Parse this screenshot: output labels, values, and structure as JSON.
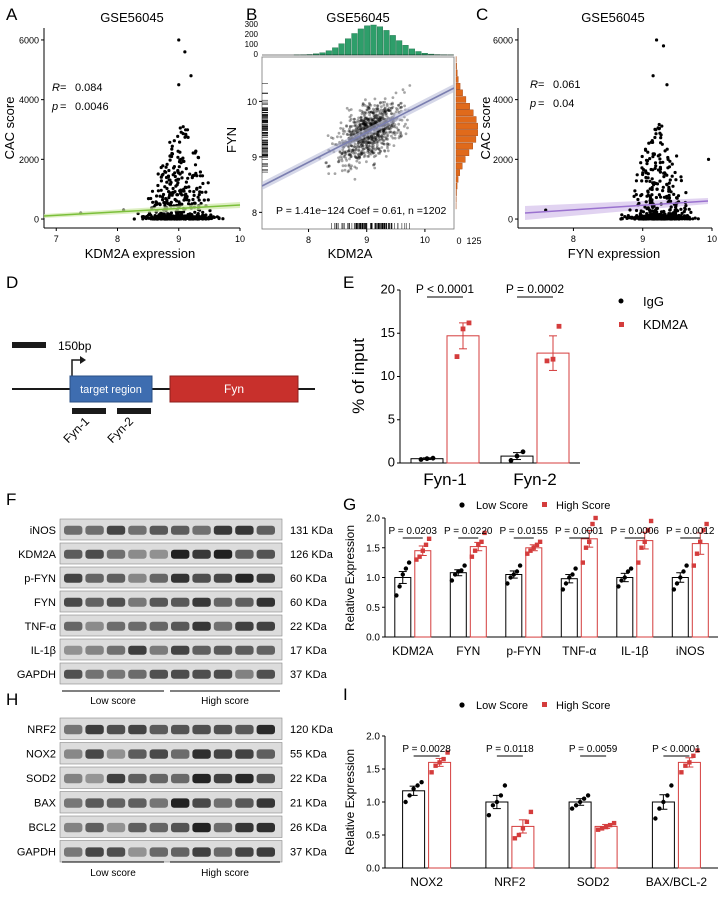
{
  "panels": {
    "A": {
      "letter": "A",
      "title": "GSE56045",
      "r_label": "R",
      "r_value": "0.084",
      "p_label": "p",
      "p_value": "0.0046",
      "xlabel": "KDM2A expression",
      "ylabel": "CAC score",
      "x_ticks": [
        "7",
        "8",
        "9",
        "10"
      ],
      "y_ticks": [
        "0",
        "2000",
        "4000",
        "6000"
      ]
    },
    "B": {
      "letter": "B",
      "title": "GSE56045",
      "xlabel": "KDM2A",
      "ylabel": "FYN",
      "x_ticks": [
        "8",
        "9",
        "10"
      ],
      "y_ticks": [
        "8",
        "9",
        "10"
      ],
      "top_hist_ticks": [
        "0",
        "100",
        "200",
        "300"
      ],
      "right_hist_ticks": [
        "0",
        "125"
      ],
      "stats": "P = 1.41e−124 Coef = 0.61, n =1202",
      "colors": {
        "top_hist": "#2e9e6a",
        "right_hist": "#e06a1b",
        "line": "#7b7fb0"
      }
    },
    "C": {
      "letter": "C",
      "title": "GSE56045",
      "r_label": "R",
      "r_value": "0.061",
      "p_label": "p",
      "p_value": "0.04",
      "xlabel": "FYN expression",
      "ylabel": "CAC score",
      "x_ticks": [
        "8",
        "9",
        "10"
      ],
      "y_ticks": [
        "0",
        "2000",
        "4000",
        "6000"
      ]
    },
    "D": {
      "letter": "D",
      "scale_label": "150bp",
      "target_label": "target region",
      "gene_label": "Fyn",
      "primer1": "Fyn-1",
      "primer2": "Fyn-2",
      "colors": {
        "target": "#3e6db0",
        "gene": "#c8302c"
      }
    },
    "E": {
      "letter": "E",
      "ylabel": "% of input",
      "y_ticks": [
        "0",
        "5",
        "10",
        "15",
        "20"
      ],
      "categories": [
        "Fyn-1",
        "Fyn-2"
      ],
      "p_values": [
        "P < 0.0001",
        "P = 0.0002"
      ],
      "legend": [
        "IgG",
        "KDM2A"
      ]
    },
    "F": {
      "letter": "F",
      "bands": [
        "iNOS",
        "KDM2A",
        "p-FYN",
        "FYN",
        "TNF-α",
        "IL-1β",
        "GAPDH"
      ],
      "sizes": [
        "131 KDa",
        "126 KDa",
        "60 KDa",
        "60 KDa",
        "22 KDa",
        "17 KDa",
        "37 KDa"
      ],
      "group_low": "Low score",
      "group_high": "High score"
    },
    "G": {
      "letter": "G",
      "legend": [
        "Low Score",
        "High Score"
      ],
      "ylabel": "Relative Expression",
      "y_ticks": [
        "0.0",
        "0.5",
        "1.0",
        "1.5",
        "2.0"
      ],
      "categories": [
        "KDM2A",
        "FYN",
        "p-FYN",
        "TNF-α",
        "IL-1β",
        "iNOS"
      ],
      "p_values": [
        "P = 0.0203",
        "P = 0.0220",
        "P = 0.0155",
        "P = 0.0001",
        "P = 0.0006",
        "P = 0.0012"
      ]
    },
    "H": {
      "letter": "H",
      "bands": [
        "NRF2",
        "NOX2",
        "SOD2",
        "BAX",
        "BCL2",
        "GAPDH"
      ],
      "sizes": [
        "120 KDa",
        "55 KDa",
        "22 KDa",
        "21 KDa",
        "26 KDa",
        "37 KDa"
      ],
      "group_low": "Low score",
      "group_high": "High score"
    },
    "I": {
      "letter": "I",
      "legend": [
        "Low Score",
        "High Score"
      ],
      "ylabel": "Relative Expression",
      "y_ticks": [
        "0.0",
        "0.5",
        "1.0",
        "1.5",
        "2.0"
      ],
      "categories": [
        "NOX2",
        "NRF2",
        "SOD2",
        "BAX/BCL-2"
      ],
      "p_values": [
        "P = 0.0028",
        "P = 0.0118",
        "P = 0.0059",
        "P < 0.0001"
      ]
    }
  },
  "colors": {
    "low": "#000000",
    "high": "#d43c3c"
  },
  "chart_data": [
    {
      "id": "E",
      "type": "bar",
      "title": "",
      "ylabel": "% of input",
      "ylim": [
        0,
        20
      ],
      "categories": [
        "Fyn-1",
        "Fyn-2"
      ],
      "series": [
        {
          "name": "IgG",
          "values": [
            0.5,
            0.8
          ],
          "errors": [
            0.1,
            0.4
          ],
          "points": [
            [
              0.4,
              0.5,
              0.55
            ],
            [
              0.3,
              0.8,
              1.3
            ]
          ]
        },
        {
          "name": "KDM2A",
          "values": [
            14.7,
            12.7
          ],
          "errors": [
            1.5,
            2.0
          ],
          "points": [
            [
              12.3,
              15.5,
              16.2
            ],
            [
              11.8,
              12.0,
              15.8
            ]
          ]
        }
      ]
    },
    {
      "id": "G",
      "type": "bar",
      "ylabel": "Relative Expression",
      "ylim": [
        0,
        2
      ],
      "categories": [
        "KDM2A",
        "FYN",
        "p-FYN",
        "TNF-α",
        "IL-1β",
        "iNOS"
      ],
      "series": [
        {
          "name": "Low Score",
          "values": [
            1.0,
            1.08,
            1.05,
            0.98,
            1.0,
            1.0
          ],
          "errors": [
            0.1,
            0.05,
            0.06,
            0.07,
            0.07,
            0.08
          ],
          "points": [
            [
              0.7,
              0.85,
              1.05,
              1.15,
              1.25
            ],
            [
              0.95,
              1.05,
              1.1,
              1.12,
              1.2
            ],
            [
              0.9,
              1.0,
              1.05,
              1.1,
              1.2
            ],
            [
              0.8,
              0.9,
              1.0,
              1.05,
              1.15
            ],
            [
              0.85,
              0.95,
              1.0,
              1.1,
              1.15
            ],
            [
              0.8,
              0.9,
              1.0,
              1.1,
              1.2
            ]
          ]
        },
        {
          "name": "High Score",
          "values": [
            1.45,
            1.52,
            1.5,
            1.65,
            1.62,
            1.57
          ],
          "errors": [
            0.08,
            0.07,
            0.05,
            0.14,
            0.14,
            0.18
          ],
          "points": [
            [
              1.3,
              1.35,
              1.45,
              1.55,
              1.65
            ],
            [
              1.35,
              1.45,
              1.55,
              1.6,
              1.75
            ],
            [
              1.4,
              1.45,
              1.5,
              1.55,
              1.6
            ],
            [
              1.25,
              1.5,
              1.6,
              1.9,
              2.0
            ],
            [
              1.25,
              1.5,
              1.6,
              1.8,
              1.95
            ],
            [
              1.2,
              1.4,
              1.6,
              1.8,
              1.9
            ]
          ]
        }
      ]
    },
    {
      "id": "I",
      "type": "bar",
      "ylabel": "Relative Expression",
      "ylim": [
        0,
        2
      ],
      "categories": [
        "NOX2",
        "NRF2",
        "SOD2",
        "BAX/BCL-2"
      ],
      "series": [
        {
          "name": "Low Score",
          "values": [
            1.17,
            1.0,
            1.0,
            1.0
          ],
          "errors": [
            0.07,
            0.1,
            0.05,
            0.11
          ],
          "points": [
            [
              1.0,
              1.1,
              1.2,
              1.25,
              1.3
            ],
            [
              0.8,
              0.95,
              1.0,
              1.1,
              1.25
            ],
            [
              0.9,
              0.95,
              1.0,
              1.05,
              1.1
            ],
            [
              0.75,
              0.9,
              1.0,
              1.1,
              1.25
            ]
          ]
        },
        {
          "name": "High Score",
          "values": [
            1.6,
            0.63,
            0.63,
            1.6
          ],
          "errors": [
            0.06,
            0.1,
            0.03,
            0.07
          ],
          "points": [
            [
              1.45,
              1.55,
              1.6,
              1.65,
              1.75
            ],
            [
              0.45,
              0.5,
              0.6,
              0.7,
              0.85
            ],
            [
              0.58,
              0.6,
              0.62,
              0.65,
              0.68
            ],
            [
              1.45,
              1.55,
              1.6,
              1.7,
              1.78
            ]
          ]
        }
      ]
    },
    {
      "id": "A",
      "type": "scatter",
      "title": "GSE56045",
      "xlabel": "KDM2A expression",
      "ylabel": "CAC score",
      "xlim": [
        6.8,
        10
      ],
      "ylim": [
        -300,
        6400
      ],
      "fit": {
        "r": 0.084,
        "p": 0.0046
      }
    },
    {
      "id": "B",
      "type": "scatter",
      "title": "GSE56045",
      "xlabel": "KDM2A",
      "ylabel": "FYN",
      "xlim": [
        7.2,
        10.5
      ],
      "ylim": [
        7.7,
        10.8
      ],
      "fit": {
        "coef": 0.61,
        "n": 1202
      }
    },
    {
      "id": "C",
      "type": "scatter",
      "title": "GSE56045",
      "xlabel": "FYN expression",
      "ylabel": "CAC score",
      "xlim": [
        7.2,
        10
      ],
      "ylim": [
        -300,
        6400
      ],
      "fit": {
        "r": 0.061,
        "p": 0.04
      }
    }
  ]
}
